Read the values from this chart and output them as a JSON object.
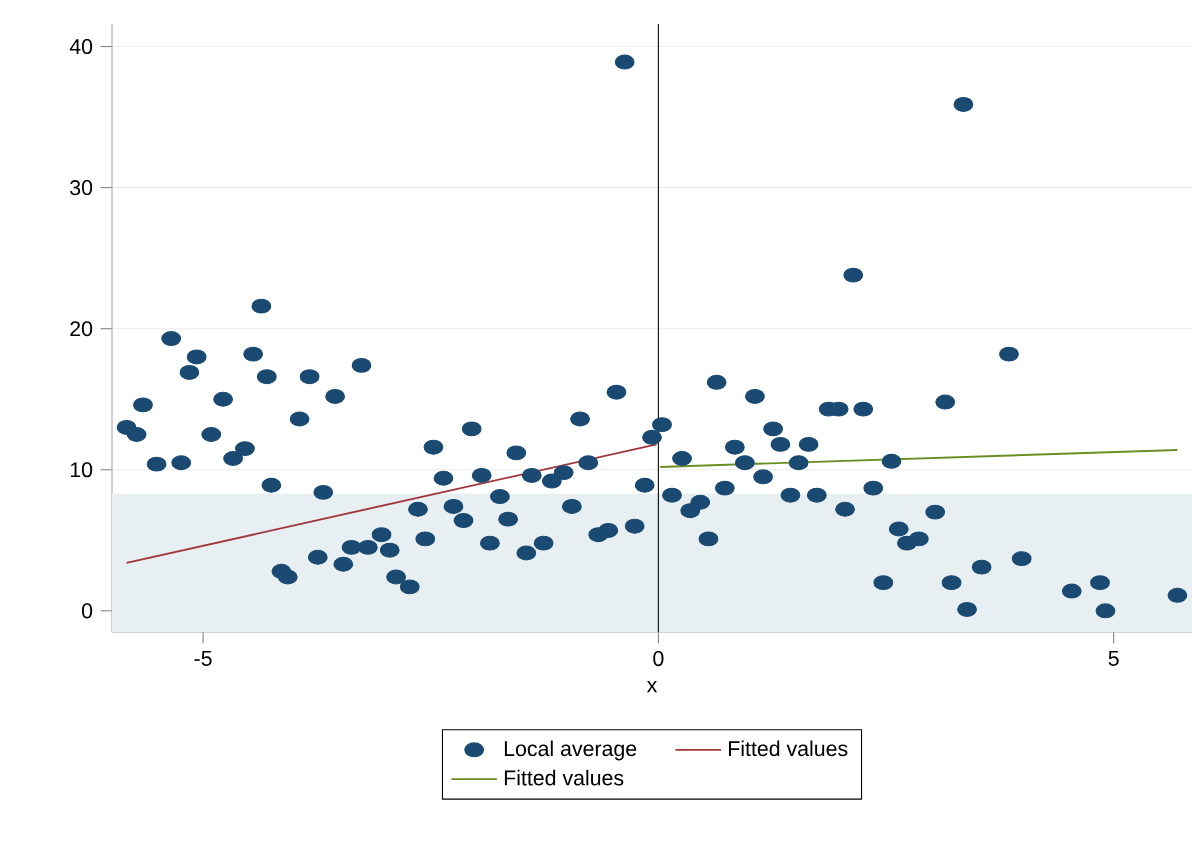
{
  "chart_data": {
    "type": "scatter",
    "xlabel": "x",
    "xlim": [
      -6.0,
      5.86
    ],
    "ylim": [
      -1.5,
      41.6
    ],
    "xticks": [
      -5,
      0,
      5
    ],
    "yticks": [
      0,
      10,
      20,
      30,
      40
    ],
    "grid": "y",
    "legend": "bottom",
    "ref_lines": [
      {
        "axis": "x",
        "value": 0,
        "color": "#000000"
      }
    ],
    "bands": [
      {
        "axis": "y",
        "from": -1.5,
        "to": 8.3,
        "color": "#e8eff2"
      }
    ],
    "series": [
      {
        "name": "Local average",
        "color": "#1a4a72",
        "marker": "circle",
        "x": [
          -5.84,
          -5.73,
          -5.66,
          -5.51,
          -5.24,
          -5.35,
          -5.07,
          -5.15,
          -4.78,
          -4.91,
          -4.67,
          -4.54,
          -4.45,
          -4.36,
          -4.3,
          -4.25,
          -4.14,
          -4.07,
          -3.94,
          -3.83,
          -3.74,
          -3.68,
          -3.55,
          -3.46,
          -3.37,
          -3.26,
          -3.19,
          -3.04,
          -2.95,
          -2.88,
          -2.73,
          -2.64,
          -2.56,
          -2.47,
          -2.36,
          -2.25,
          -2.14,
          -2.05,
          -1.94,
          -1.85,
          -1.74,
          -1.65,
          -1.56,
          -1.45,
          -1.39,
          -1.26,
          -1.17,
          -1.04,
          -0.95,
          -0.86,
          -0.77,
          -0.66,
          -0.55,
          -0.46,
          -0.37,
          -0.26,
          -0.15,
          -0.07,
          0.04,
          0.15,
          0.26,
          0.35,
          0.46,
          0.55,
          0.64,
          0.73,
          0.84,
          0.95,
          1.06,
          1.15,
          1.26,
          1.34,
          1.45,
          1.54,
          1.65,
          1.74,
          1.87,
          1.98,
          2.05,
          2.14,
          2.25,
          2.36,
          2.47,
          2.56,
          2.64,
          2.73,
          2.86,
          3.04,
          3.15,
          3.22,
          3.35,
          3.39,
          3.55,
          3.85,
          3.99,
          4.54,
          4.85,
          4.91,
          5.7
        ],
        "values": [
          13.0,
          12.5,
          14.6,
          10.4,
          10.5,
          19.3,
          18.0,
          16.9,
          15.0,
          12.5,
          10.8,
          11.5,
          18.2,
          21.6,
          16.6,
          8.9,
          2.8,
          2.4,
          13.6,
          16.6,
          3.8,
          8.4,
          15.2,
          3.3,
          4.5,
          17.4,
          4.5,
          5.4,
          4.3,
          2.4,
          1.7,
          7.2,
          5.1,
          11.6,
          9.4,
          7.4,
          6.4,
          12.9,
          9.6,
          4.8,
          8.1,
          6.5,
          11.2,
          4.1,
          9.6,
          4.8,
          9.2,
          9.8,
          7.4,
          13.6,
          10.5,
          5.4,
          5.7,
          15.5,
          38.9,
          6.0,
          8.9,
          12.3,
          13.2,
          8.2,
          10.8,
          7.1,
          7.7,
          5.1,
          16.2,
          8.7,
          11.6,
          10.5,
          15.2,
          9.5,
          12.9,
          11.8,
          8.2,
          10.5,
          11.8,
          8.2,
          14.3,
          14.3,
          7.2,
          23.8,
          14.3,
          8.7,
          2.0,
          10.6,
          5.8,
          4.8,
          5.1,
          7.0,
          14.8,
          2.0,
          35.9,
          0.1,
          3.1,
          18.2,
          3.7,
          1.4,
          2.0,
          0.0,
          1.1
        ]
      },
      {
        "name": "Fitted values",
        "type": "line",
        "color": "#a0363a",
        "marker": "none",
        "line_style": "solid",
        "x": [
          -5.84,
          -0.02
        ],
        "values": [
          3.4,
          11.8
        ]
      },
      {
        "name": "Fitted values",
        "type": "line",
        "color": "#6b8e23",
        "marker": "none",
        "line_style": "solid",
        "x": [
          0.02,
          5.7
        ],
        "values": [
          10.2,
          11.4
        ]
      }
    ]
  }
}
